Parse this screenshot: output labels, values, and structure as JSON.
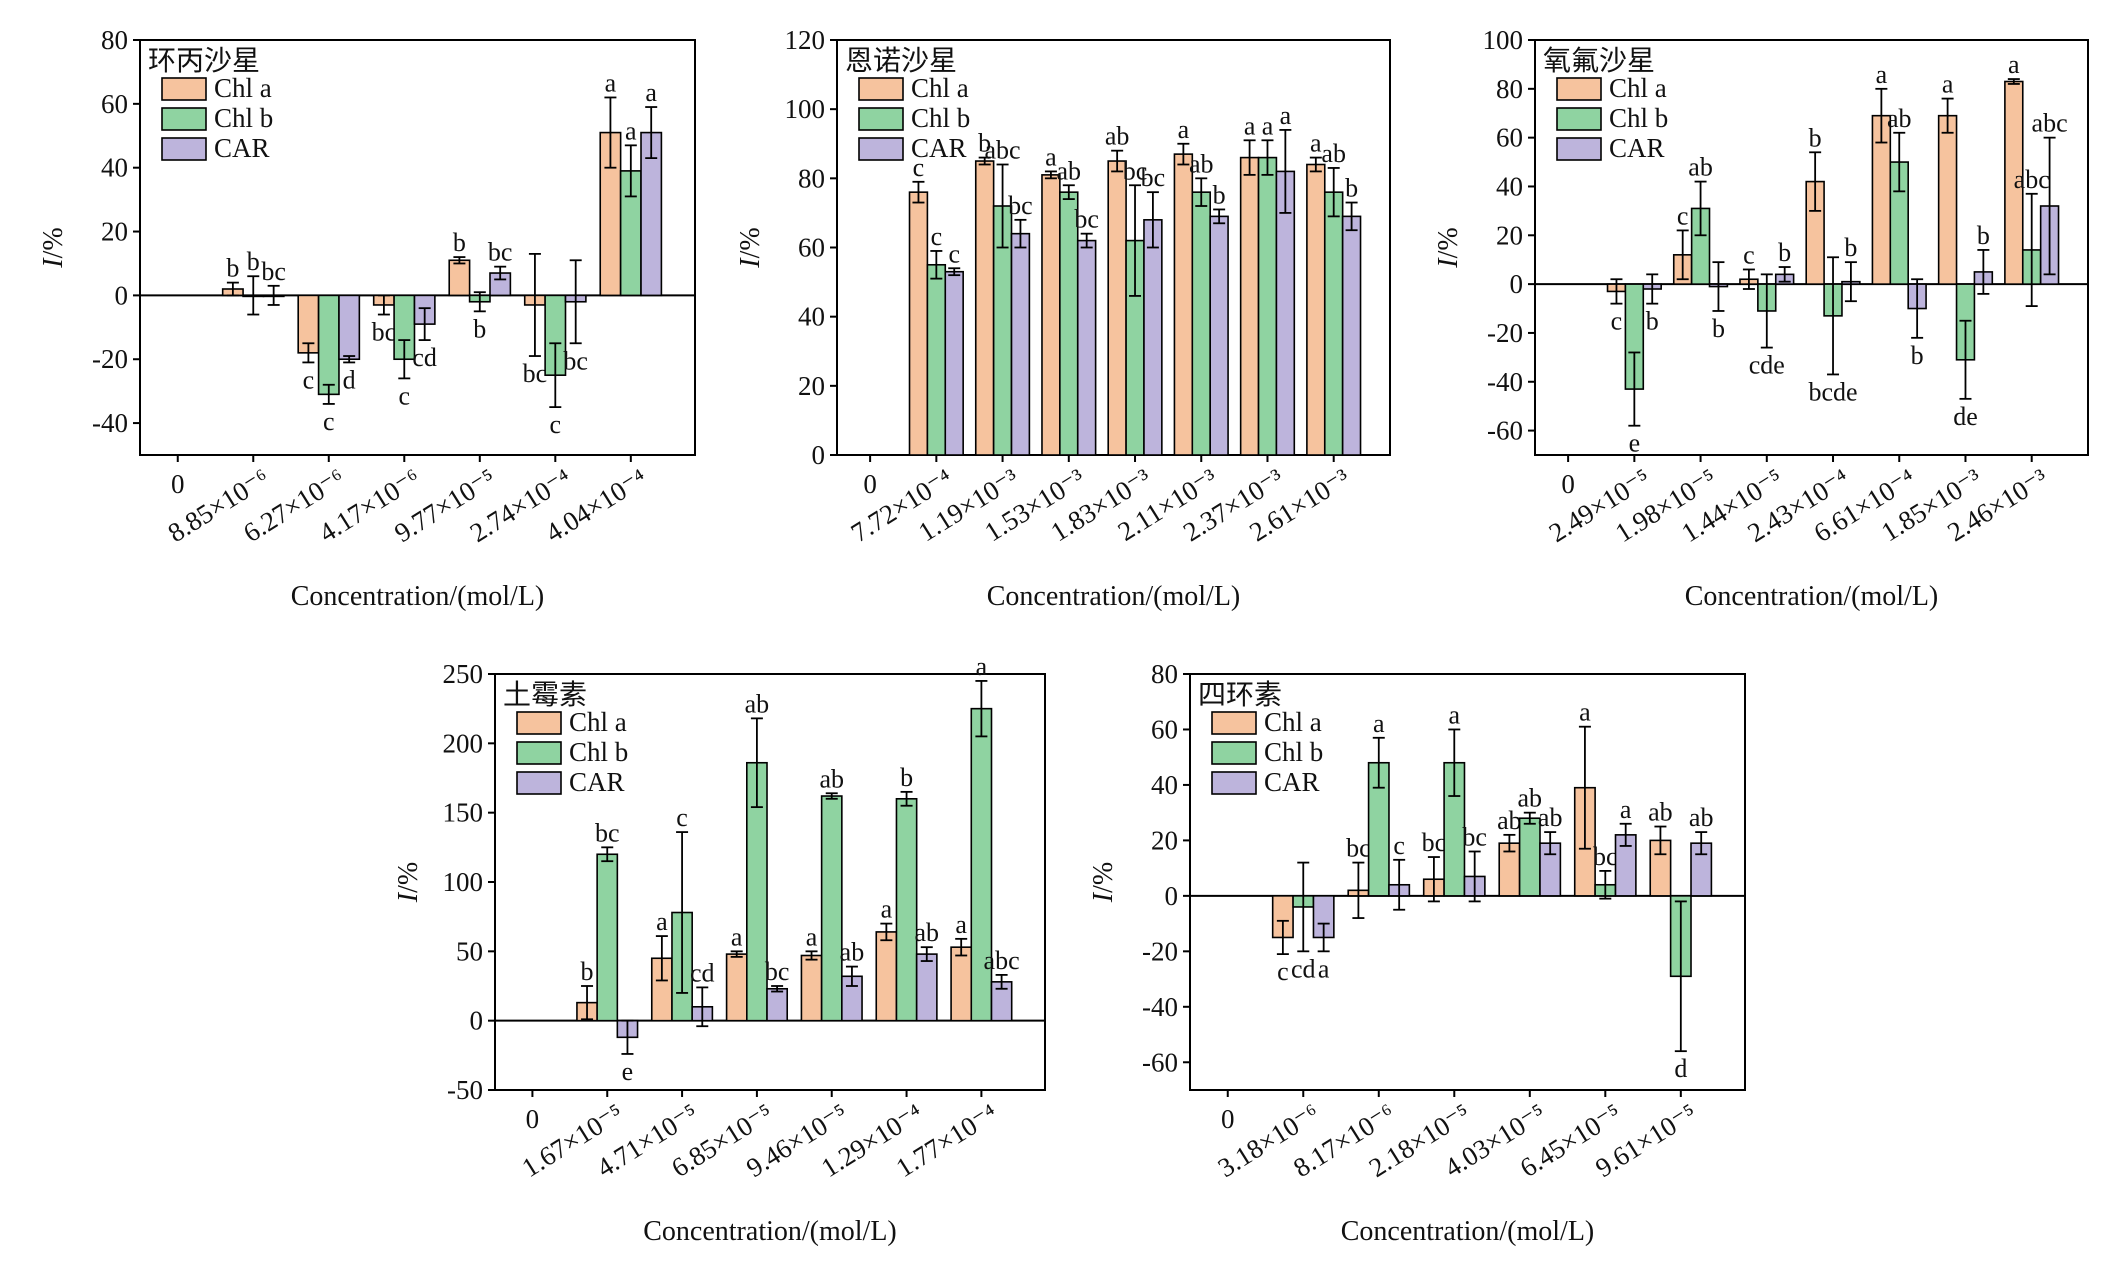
{
  "colors": {
    "Chl a": "#F6C39E",
    "Chl b": "#8FD3A1",
    "CAR": "#BDB4DC"
  },
  "xlabel": "Concentration/(mol/L)",
  "ylabel": "I/%",
  "chart_data": [
    {
      "type": "bar",
      "title": "环丙沙星",
      "xlabel": "Concentration/(mol/L)",
      "ylabel": "I/%",
      "ylim": [
        -50,
        80
      ],
      "yticks": [
        -40,
        -20,
        0,
        20,
        40,
        60,
        80
      ],
      "categories": [
        "0",
        "8.85×10⁻⁶",
        "6.27×10⁻⁶",
        "4.17×10⁻⁶",
        "9.77×10⁻⁵",
        "2.74×10⁻⁴",
        "4.04×10⁻⁴"
      ],
      "legend": "top-left",
      "series": [
        {
          "name": "Chl a",
          "values": [
            null,
            2,
            -18,
            -3,
            11,
            -3,
            51
          ],
          "errors": [
            null,
            2,
            3,
            3,
            1,
            16,
            11
          ],
          "labels": [
            "",
            "b",
            "c",
            "bc",
            "b",
            "bc",
            "a"
          ]
        },
        {
          "name": "Chl b",
          "values": [
            null,
            0,
            -31,
            -20,
            -2,
            -25,
            39
          ],
          "errors": [
            null,
            6,
            3,
            6,
            3,
            10,
            8
          ],
          "labels": [
            "",
            "b",
            "c",
            "c",
            "b",
            "c",
            "a"
          ]
        },
        {
          "name": "CAR",
          "values": [
            null,
            0,
            -20,
            -9,
            7,
            -2,
            51
          ],
          "errors": [
            null,
            3,
            1,
            5,
            2,
            13,
            8
          ],
          "labels": [
            "",
            "bc",
            "d",
            "cd",
            "bc",
            "bc",
            "a"
          ]
        }
      ]
    },
    {
      "type": "bar",
      "title": "恩诺沙星",
      "xlabel": "Concentration/(mol/L)",
      "ylabel": "I/%",
      "ylim": [
        0,
        120
      ],
      "yticks": [
        0,
        20,
        40,
        60,
        80,
        100,
        120
      ],
      "categories": [
        "0",
        "7.72×10⁻⁴",
        "1.19×10⁻³",
        "1.53×10⁻³",
        "1.83×10⁻³",
        "2.11×10⁻³",
        "2.37×10⁻³",
        "2.61×10⁻³"
      ],
      "legend": "top-left",
      "series": [
        {
          "name": "Chl a",
          "values": [
            null,
            76,
            85,
            81,
            85,
            87,
            86,
            84
          ],
          "errors": [
            null,
            3,
            1,
            1,
            3,
            3,
            5,
            2
          ],
          "labels": [
            "",
            "c",
            "b",
            "a",
            "ab",
            "a",
            "a",
            "a"
          ]
        },
        {
          "name": "Chl b",
          "values": [
            null,
            55,
            72,
            76,
            62,
            76,
            86,
            76
          ],
          "errors": [
            null,
            4,
            12,
            2,
            16,
            4,
            5,
            7
          ],
          "labels": [
            "",
            "c",
            "abc",
            "ab",
            "bc",
            "ab",
            "a",
            "ab"
          ]
        },
        {
          "name": "CAR",
          "values": [
            null,
            53,
            64,
            62,
            68,
            69,
            82,
            69
          ],
          "errors": [
            null,
            1,
            4,
            2,
            8,
            2,
            12,
            4
          ],
          "labels": [
            "",
            "c",
            "bc",
            "bc",
            "bc",
            "b",
            "a",
            "b"
          ]
        }
      ]
    },
    {
      "type": "bar",
      "title": "氧氟沙星",
      "xlabel": "Concentration/(mol/L)",
      "ylabel": "I/%",
      "ylim": [
        -70,
        100
      ],
      "yticks": [
        -60,
        -40,
        -20,
        0,
        20,
        40,
        60,
        80,
        100
      ],
      "categories": [
        "0",
        "2.49×10⁻⁵",
        "1.98×10⁻⁵",
        "1.44×10⁻⁵",
        "2.43×10⁻⁴",
        "6.61×10⁻⁴",
        "1.85×10⁻³",
        "2.46×10⁻³"
      ],
      "legend": "top-left",
      "series": [
        {
          "name": "Chl a",
          "values": [
            null,
            -3,
            12,
            2,
            42,
            69,
            69,
            83
          ],
          "errors": [
            null,
            5,
            10,
            4,
            12,
            11,
            7,
            1
          ],
          "labels": [
            "",
            "c",
            "c",
            "c",
            "b",
            "a",
            "a",
            "a"
          ]
        },
        {
          "name": "Chl b",
          "values": [
            null,
            -43,
            31,
            -11,
            -13,
            50,
            -31,
            14
          ],
          "errors": [
            null,
            15,
            11,
            15,
            24,
            12,
            16,
            23
          ],
          "labels": [
            "",
            "e",
            "ab",
            "cde",
            "bcde",
            "ab",
            "de",
            "abc"
          ]
        },
        {
          "name": "CAR",
          "values": [
            null,
            -2,
            -1,
            4,
            1,
            -10,
            5,
            32
          ],
          "errors": [
            null,
            6,
            10,
            3,
            8,
            12,
            9,
            28
          ],
          "labels": [
            "",
            "b",
            "b",
            "b",
            "b",
            "b",
            "b",
            "abc"
          ]
        }
      ]
    },
    {
      "type": "bar",
      "title": "土霉素",
      "xlabel": "Concentration/(mol/L)",
      "ylabel": "I/%",
      "ylim": [
        -50,
        250
      ],
      "yticks": [
        -50,
        0,
        50,
        100,
        150,
        200,
        250
      ],
      "categories": [
        "0",
        "1.67×10⁻⁵",
        "4.71×10⁻⁵",
        "6.85×10⁻⁵",
        "9.46×10⁻⁵",
        "1.29×10⁻⁴",
        "1.77×10⁻⁴"
      ],
      "legend": "top-left",
      "series": [
        {
          "name": "Chl a",
          "values": [
            null,
            13,
            45,
            48,
            47,
            64,
            53
          ],
          "errors": [
            null,
            12,
            16,
            2,
            3,
            6,
            6
          ],
          "labels": [
            "",
            "b",
            "a",
            "a",
            "a",
            "a",
            "a"
          ]
        },
        {
          "name": "Chl b",
          "values": [
            null,
            120,
            78,
            186,
            162,
            160,
            225
          ],
          "errors": [
            null,
            5,
            58,
            32,
            2,
            5,
            20
          ],
          "labels": [
            "",
            "bc",
            "c",
            "ab",
            "ab",
            "b",
            "a"
          ]
        },
        {
          "name": "CAR",
          "values": [
            null,
            -12,
            10,
            23,
            32,
            48,
            28
          ],
          "errors": [
            null,
            12,
            14,
            2,
            7,
            5,
            5
          ],
          "labels": [
            "",
            "e",
            "cd",
            "bc",
            "ab",
            "ab",
            "abc"
          ]
        }
      ]
    },
    {
      "type": "bar",
      "title": "四环素",
      "xlabel": "Concentration/(mol/L)",
      "ylabel": "I/%",
      "ylim": [
        -70,
        80
      ],
      "yticks": [
        -60,
        -40,
        -20,
        0,
        20,
        40,
        60,
        80
      ],
      "categories": [
        "0",
        "3.18×10⁻⁶",
        "8.17×10⁻⁶",
        "2.18×10⁻⁵",
        "4.03×10⁻⁵",
        "6.45×10⁻⁵",
        "9.61×10⁻⁵"
      ],
      "legend": "top-left",
      "series": [
        {
          "name": "Chl a",
          "values": [
            null,
            -15,
            2,
            6,
            19,
            39,
            20
          ],
          "errors": [
            null,
            6,
            10,
            8,
            3,
            22,
            5
          ],
          "labels": [
            "",
            "c",
            "bc",
            "bc",
            "ab",
            "a",
            "ab"
          ]
        },
        {
          "name": "Chl b",
          "values": [
            null,
            -4,
            48,
            48,
            28,
            4,
            -29
          ],
          "errors": [
            null,
            16,
            9,
            12,
            2,
            5,
            27
          ],
          "labels": [
            "",
            "cd",
            "a",
            "a",
            "ab",
            "bc",
            "d"
          ]
        },
        {
          "name": "CAR",
          "values": [
            null,
            -15,
            4,
            7,
            19,
            22,
            19
          ],
          "errors": [
            null,
            5,
            9,
            9,
            4,
            4,
            4
          ],
          "labels": [
            "",
            "a",
            "c",
            "bc",
            "ab",
            "a",
            "ab"
          ]
        }
      ]
    }
  ]
}
